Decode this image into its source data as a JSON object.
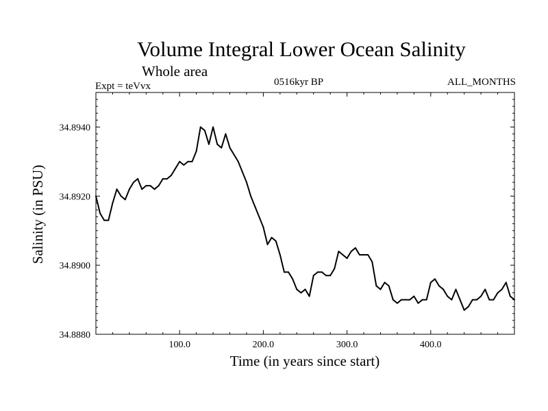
{
  "chart_data": {
    "type": "line",
    "title": "Volume Integral Lower Ocean Salinity",
    "subtitle": "Whole area",
    "annotations": {
      "left": "Expt = teVvx",
      "center": "0516kyr BP",
      "right": "ALL_MONTHS"
    },
    "xlabel": "Time (in years since start)",
    "ylabel": "Salinity (in PSU)",
    "xlim": [
      0,
      500
    ],
    "ylim": [
      34.888,
      34.895
    ],
    "xticks": [
      100,
      200,
      300,
      400
    ],
    "xtick_labels": [
      "100.0",
      "200.0",
      "300.0",
      "400.0"
    ],
    "yticks": [
      34.888,
      34.89,
      34.892,
      34.894
    ],
    "ytick_labels": [
      "34.8880",
      "34.8900",
      "34.8920",
      "34.8940"
    ],
    "grid": false,
    "series": [
      {
        "line_color": "#000000",
        "x": [
          0,
          5,
          10,
          15,
          20,
          25,
          30,
          35,
          40,
          45,
          50,
          55,
          60,
          65,
          70,
          75,
          80,
          85,
          90,
          95,
          100,
          105,
          110,
          115,
          120,
          125,
          130,
          135,
          140,
          145,
          150,
          155,
          160,
          165,
          170,
          175,
          180,
          185,
          190,
          195,
          200,
          205,
          210,
          215,
          220,
          225,
          230,
          235,
          240,
          245,
          250,
          255,
          260,
          265,
          270,
          275,
          280,
          285,
          290,
          295,
          300,
          305,
          310,
          315,
          320,
          325,
          330,
          335,
          340,
          345,
          350,
          355,
          360,
          365,
          370,
          375,
          380,
          385,
          390,
          395,
          400,
          405,
          410,
          415,
          420,
          425,
          430,
          435,
          440,
          445,
          450,
          455,
          460,
          465,
          470,
          475,
          480,
          485,
          490,
          495,
          500
        ],
        "y": [
          34.892,
          34.8915,
          34.8913,
          34.8913,
          34.8918,
          34.8922,
          34.892,
          34.8919,
          34.8922,
          34.8924,
          34.8925,
          34.8922,
          34.8923,
          34.8923,
          34.8922,
          34.8923,
          34.8925,
          34.8925,
          34.8926,
          34.8928,
          34.893,
          34.8929,
          34.893,
          34.893,
          34.8933,
          34.894,
          34.8939,
          34.8935,
          34.894,
          34.8935,
          34.8934,
          34.8938,
          34.8934,
          34.8932,
          34.893,
          34.8927,
          34.8924,
          34.892,
          34.8917,
          34.8914,
          34.8911,
          34.8906,
          34.8908,
          34.8907,
          34.8903,
          34.8898,
          34.8898,
          34.8896,
          34.8893,
          34.8892,
          34.8893,
          34.8891,
          34.8897,
          34.8898,
          34.8898,
          34.8897,
          34.8897,
          34.8899,
          34.8904,
          34.8903,
          34.8902,
          34.8904,
          34.8905,
          34.8903,
          34.8903,
          34.8903,
          34.8901,
          34.8894,
          34.8893,
          34.8895,
          34.8894,
          34.889,
          34.8889,
          34.889,
          34.889,
          34.889,
          34.8891,
          34.8889,
          34.889,
          34.889,
          34.8895,
          34.8896,
          34.8894,
          34.8893,
          34.8891,
          34.889,
          34.8893,
          34.889,
          34.8887,
          34.8888,
          34.889,
          34.889,
          34.8891,
          34.8893,
          34.889,
          34.889,
          34.8892,
          34.8893,
          34.8895,
          34.8891,
          34.889
        ]
      }
    ]
  }
}
